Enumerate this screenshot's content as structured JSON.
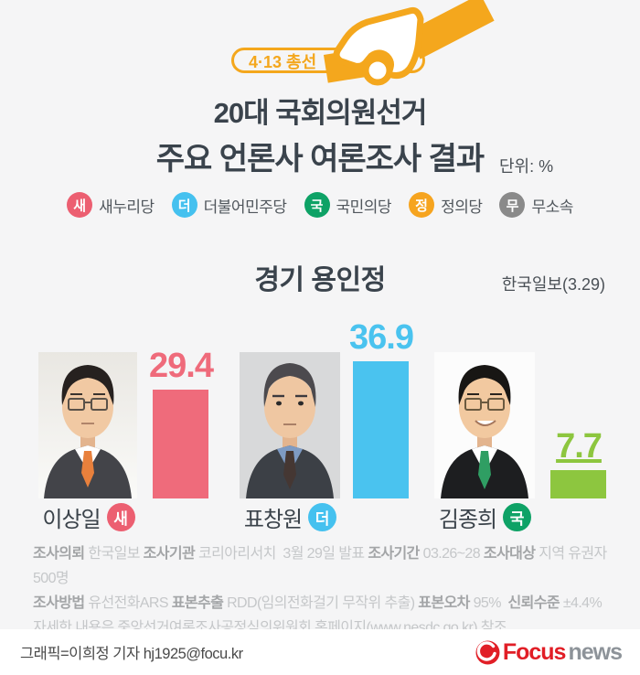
{
  "page": {
    "background": "#f5f5f6",
    "accent_orange": "#f4a71d"
  },
  "header": {
    "badge_label": "4·13 총선",
    "title_line1": "20대 국회의원선거",
    "title_line2": "주요 언론사 여론조사 결과",
    "unit_label": "단위: %"
  },
  "legend": {
    "items": [
      {
        "abbr": "새",
        "label": "새누리당",
        "color": "#ec5f71"
      },
      {
        "abbr": "더",
        "label": "더불어민주당",
        "color": "#45c1ef"
      },
      {
        "abbr": "국",
        "label": "국민의당",
        "color": "#0ea266"
      },
      {
        "abbr": "정",
        "label": "정의당",
        "color": "#f6a41f"
      },
      {
        "abbr": "무",
        "label": "무소속",
        "color": "#8a8a8a"
      }
    ]
  },
  "section": {
    "region_title": "경기 용인정",
    "source": "한국일보(3.29)"
  },
  "chart_data": {
    "type": "bar",
    "title": "경기 용인정",
    "subtitle": "20대 국회의원선거 주요 언론사 여론조사 결과",
    "source": "한국일보(3.29)",
    "unit": "%",
    "xlabel": "",
    "ylabel": "",
    "ylim": [
      0,
      40
    ],
    "grid": false,
    "legend_position": "none",
    "categories": [
      "이상일",
      "표창원",
      "김종희"
    ],
    "values": [
      29.4,
      36.9,
      7.7
    ],
    "candidates": [
      {
        "name": "이상일",
        "party_abbr": "새",
        "party": "새누리당",
        "value": 29.4,
        "bar_color": "#ef6b7b",
        "badge_color": "#ec5f71"
      },
      {
        "name": "표창원",
        "party_abbr": "더",
        "party": "더불어민주당",
        "value": 36.9,
        "bar_color": "#4ac3ef",
        "badge_color": "#45c1ef"
      },
      {
        "name": "김종희",
        "party_abbr": "국",
        "party": "국민의당",
        "value": 7.7,
        "bar_color": "#8dc63f",
        "badge_color": "#0ea266"
      }
    ]
  },
  "survey_notes": {
    "lines": [
      [
        {
          "text": "조사의뢰 ",
          "bold": true
        },
        {
          "text": "한국일보 ",
          "bold": false
        },
        {
          "text": "조사기관 ",
          "bold": true
        },
        {
          "text": "코리아리서치  3월 29일 발표 ",
          "bold": false
        },
        {
          "text": "조사기간 ",
          "bold": true
        },
        {
          "text": "03.26~28 ",
          "bold": false
        },
        {
          "text": "조사대상 ",
          "bold": true
        },
        {
          "text": "지역 유권자 500명",
          "bold": false
        }
      ],
      [
        {
          "text": "조사방법 ",
          "bold": true
        },
        {
          "text": "유선전화ARS ",
          "bold": false
        },
        {
          "text": "표본추출 ",
          "bold": true
        },
        {
          "text": "RDD(임의전화걸기 무작위 추출) ",
          "bold": false
        },
        {
          "text": "표본오차 ",
          "bold": true
        },
        {
          "text": "95%  ",
          "bold": false
        },
        {
          "text": "신뢰수준 ",
          "bold": true
        },
        {
          "text": "±4.4%",
          "bold": false
        }
      ],
      [
        {
          "text": "자세한 내용은 중앙선거여론조사공정심의위원회 홈페이지(www.nesdc.go.kr) 참조",
          "bold": false
        }
      ]
    ]
  },
  "footer": {
    "credit": "그래픽=이희정 기자 hj1925@focu.kr",
    "brand": "Focus",
    "brand_suffix": "news"
  }
}
